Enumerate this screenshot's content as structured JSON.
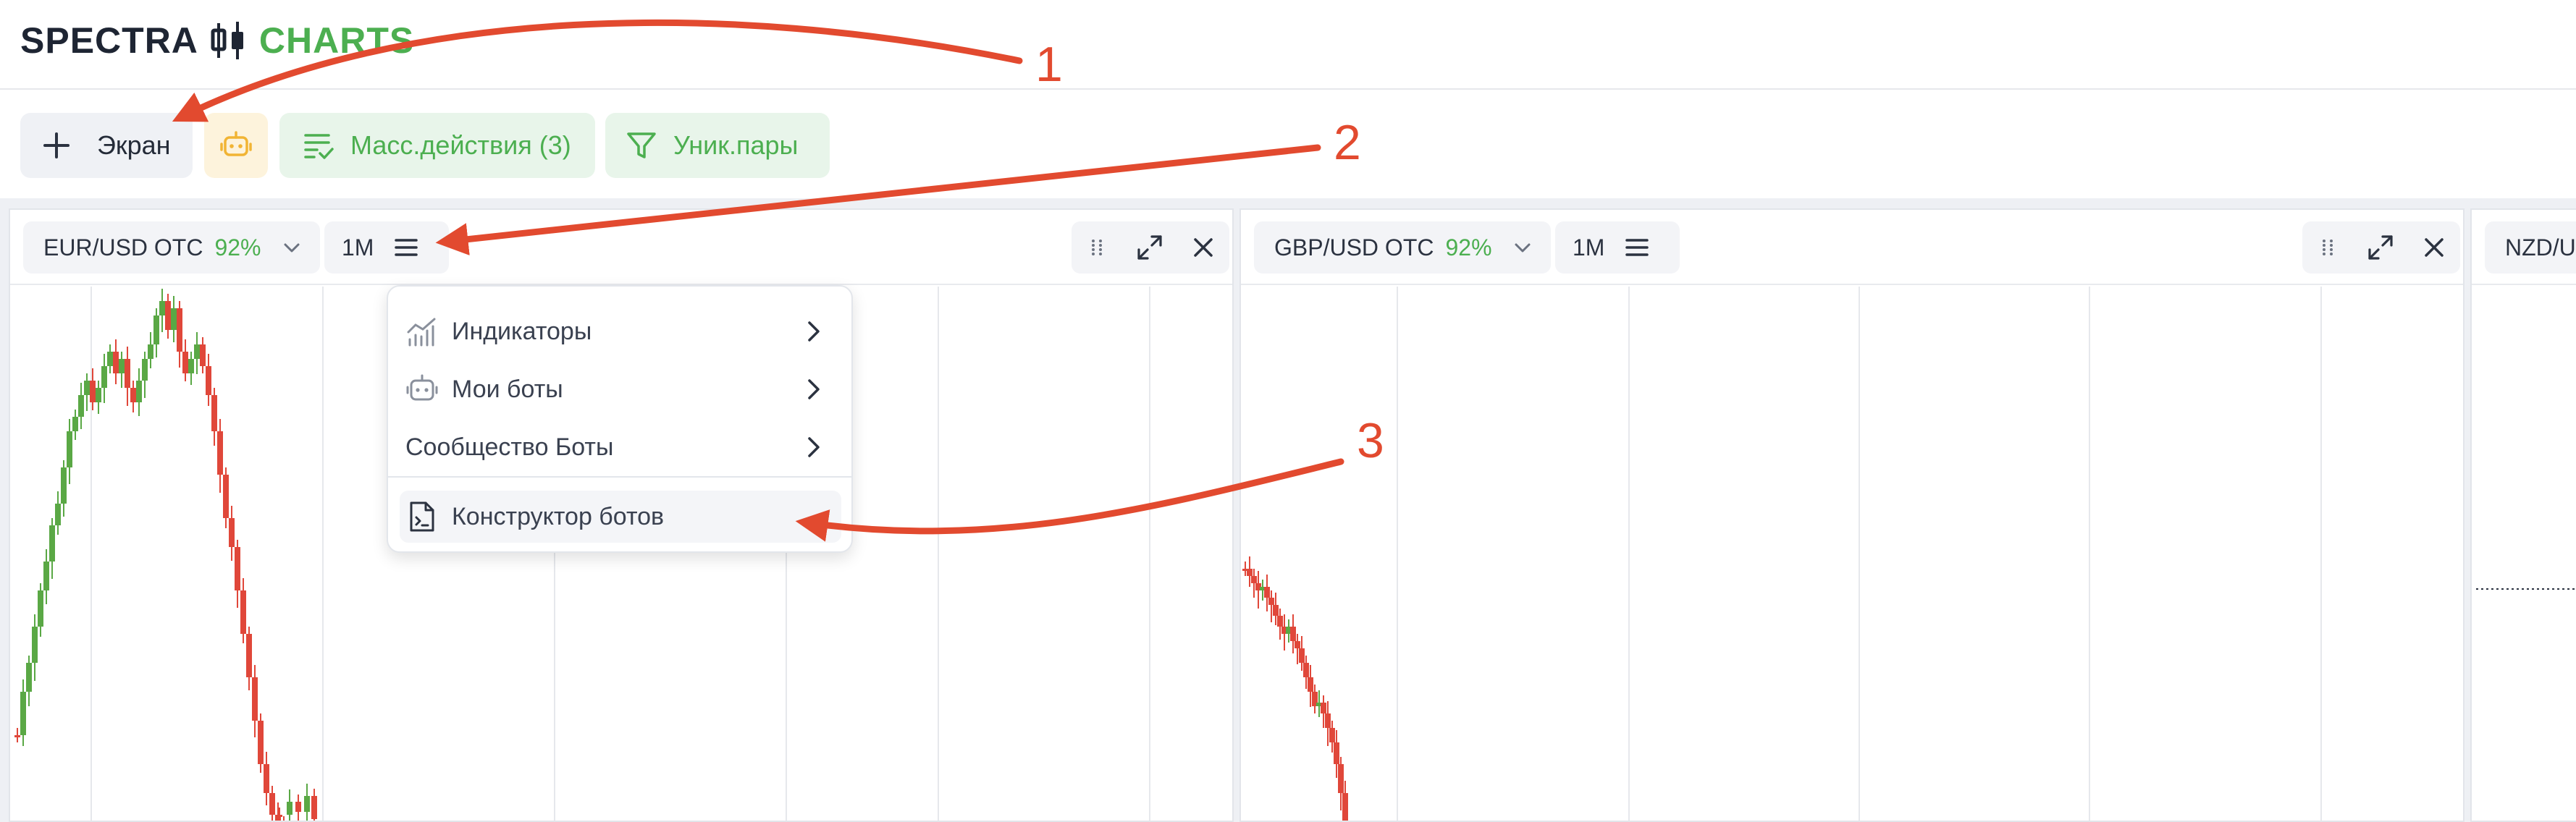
{
  "header": {
    "logo_word1": "SPECTRA",
    "logo_word2": "CHARTS"
  },
  "toolbar": {
    "screen_label": "Экран",
    "mass_label": "Масс.действия (3)",
    "pairs_label": "Уник.пары"
  },
  "panels": [
    {
      "pair": "EUR/USD OTC",
      "payout": "92%",
      "timeframe": "1M"
    },
    {
      "pair": "GBP/USD OTC",
      "payout": "92%",
      "timeframe": "1M"
    },
    {
      "pair": "NZD/US"
    }
  ],
  "menu": {
    "items": [
      {
        "label": "Индикаторы",
        "icon": "chart-icon"
      },
      {
        "label": "Мои боты",
        "icon": "bot-icon"
      },
      {
        "label": "Сообщество Боты"
      },
      {
        "label": "Конструктор ботов",
        "icon": "code-file-icon"
      }
    ]
  },
  "callouts": [
    "1",
    "2",
    "3"
  ],
  "colors": {
    "accent_green": "#4caf50",
    "candle_up": "#5aa845",
    "candle_down": "#e0473a",
    "callout_red": "#e24a2f"
  }
}
